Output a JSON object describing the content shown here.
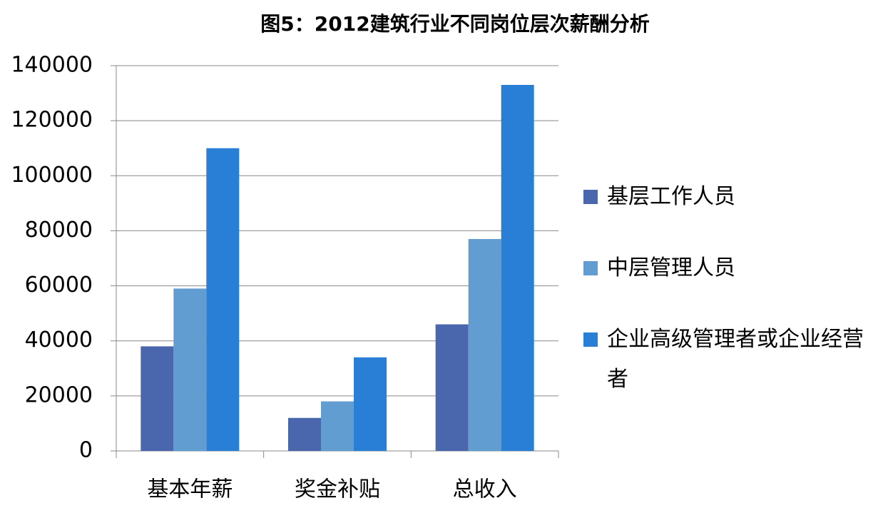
{
  "chart_data": {
    "type": "bar",
    "title": "图5：2012建筑行业不同岗位层次薪酬分析",
    "categories": [
      "基本年薪",
      "奖金补贴",
      "总收入"
    ],
    "series": [
      {
        "name": "基层工作人员",
        "color": "#4a66ac",
        "values": [
          38000,
          12000,
          46000
        ]
      },
      {
        "name": "中层管理人员",
        "color": "#629dd1",
        "values": [
          59000,
          18000,
          77000
        ]
      },
      {
        "name": "企业高级管理者或企业经营者",
        "color": "#297fd5",
        "values": [
          110000,
          34000,
          133000
        ]
      }
    ],
    "ylim": [
      0,
      140000
    ],
    "yticks": [
      0,
      20000,
      40000,
      60000,
      80000,
      100000,
      120000,
      140000
    ],
    "grid": true,
    "legend": "right"
  }
}
